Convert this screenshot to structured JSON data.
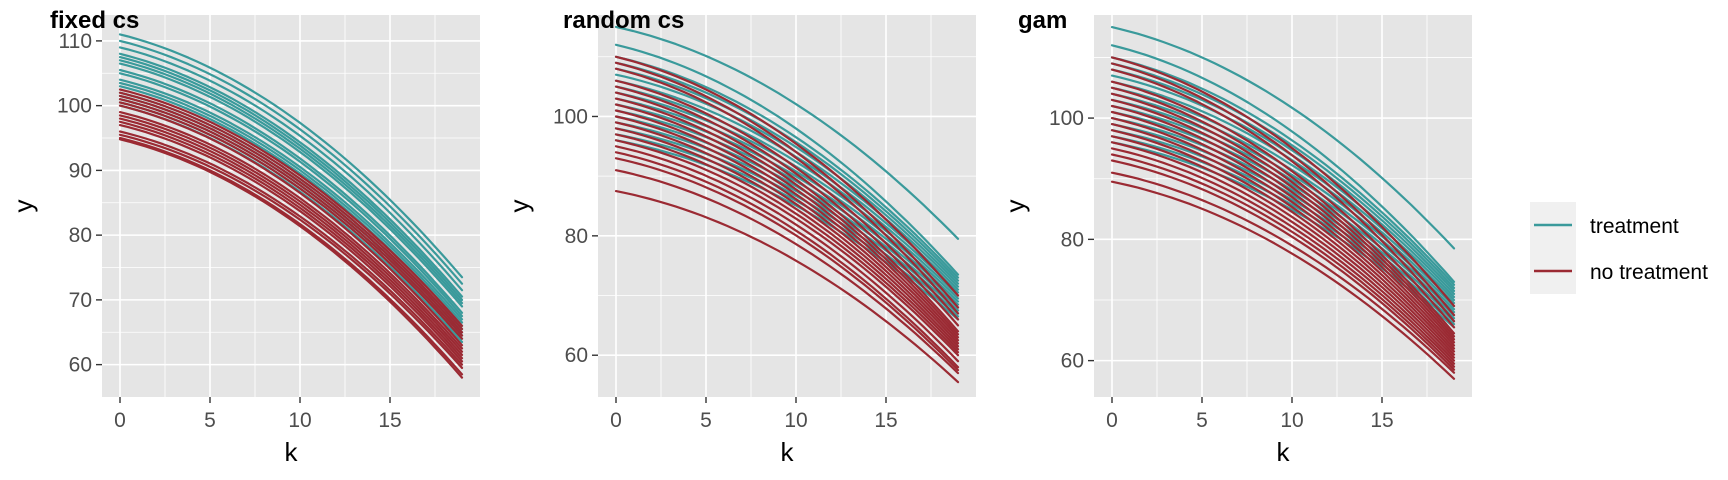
{
  "chart_data": [
    {
      "type": "line",
      "title": "fixed cs",
      "xlabel": "k",
      "ylabel": "y",
      "xlim": [
        -1,
        20
      ],
      "ylim": [
        55,
        114
      ],
      "xticks": [
        0,
        5,
        10,
        15
      ],
      "yticks": [
        60,
        70,
        80,
        90,
        100,
        110
      ],
      "xticklabels": [
        "0",
        "5",
        "10",
        "15"
      ],
      "yticklabels": [
        "60",
        "70",
        "80",
        "90",
        "100",
        "110"
      ],
      "grid": true,
      "x": [
        0,
        19
      ],
      "series": [
        {
          "group": "treatment",
          "start_values": [
            111,
            110,
            109,
            108,
            107.5,
            107,
            106.5,
            105.5,
            105,
            104,
            103.5,
            103,
            102,
            101.5,
            101,
            100.5,
            100
          ],
          "end_values": [
            73.5,
            72.5,
            71.5,
            70.5,
            70,
            69.5,
            69,
            68,
            67.5,
            67,
            66.5,
            66,
            65.5,
            65,
            64.5,
            64,
            63.5
          ]
        },
        {
          "group": "no treatment",
          "start_values": [
            102.5,
            102,
            101.5,
            101,
            100.5,
            100,
            99,
            98.5,
            98,
            97.5,
            97,
            96,
            95.5,
            95,
            94.8
          ],
          "end_values": [
            66,
            65.5,
            65,
            64.5,
            64,
            63,
            62.5,
            62,
            61.5,
            61,
            60.5,
            60,
            59.5,
            58.5,
            58
          ]
        }
      ]
    },
    {
      "type": "line",
      "title": "random cs",
      "xlabel": "k",
      "ylabel": "y",
      "xlim": [
        -1,
        20
      ],
      "ylim": [
        53,
        117
      ],
      "xticks": [
        0,
        5,
        10,
        15
      ],
      "yticks": [
        60,
        80,
        100
      ],
      "xticklabels": [
        "0",
        "5",
        "10",
        "15"
      ],
      "yticklabels": [
        "60",
        "80",
        "100"
      ],
      "grid": true,
      "x": [
        0,
        19
      ],
      "series": [
        {
          "group": "treatment",
          "start_values": [
            115,
            112,
            110,
            109,
            108,
            107,
            106,
            105,
            104,
            103,
            102,
            101,
            100,
            99,
            98,
            97,
            96
          ],
          "end_values": [
            79.5,
            73.5,
            73,
            72.5,
            72,
            71.5,
            71,
            70.5,
            70,
            69.5,
            69,
            68.5,
            68,
            67.5,
            67,
            66.5,
            66
          ]
        },
        {
          "group": "no treatment",
          "start_values": [
            110,
            109,
            108,
            106,
            105,
            104,
            103,
            102,
            101,
            100,
            99,
            98,
            97,
            96,
            95,
            94,
            93,
            91,
            87.5
          ],
          "end_values": [
            70,
            68,
            67,
            66,
            65,
            64,
            63.5,
            63,
            62.5,
            62,
            61.5,
            61,
            60.5,
            60,
            59,
            58,
            57.5,
            57,
            55.5
          ]
        }
      ]
    },
    {
      "type": "line",
      "title": "gam",
      "xlabel": "k",
      "ylabel": "y",
      "xlim": [
        -1,
        20
      ],
      "ylim": [
        54,
        117
      ],
      "xticks": [
        0,
        5,
        10,
        15
      ],
      "yticks": [
        60,
        80,
        100
      ],
      "xticklabels": [
        "0",
        "5",
        "10",
        "15"
      ],
      "yticklabels": [
        "60",
        "80",
        "100"
      ],
      "grid": true,
      "x": [
        0,
        19
      ],
      "series": [
        {
          "group": "treatment",
          "start_values": [
            115,
            112,
            110,
            109,
            108,
            107,
            106,
            105,
            104,
            103,
            102,
            101,
            100,
            99,
            98,
            97,
            96
          ],
          "end_values": [
            78.5,
            73,
            72.5,
            72,
            71.5,
            71,
            70.5,
            70,
            69.5,
            69,
            68.5,
            68,
            67.5,
            67,
            66.5,
            66,
            65.5
          ]
        },
        {
          "group": "no treatment",
          "start_values": [
            110,
            109,
            108,
            106,
            105,
            104,
            103,
            102,
            101,
            100,
            99,
            98,
            97,
            96,
            95,
            94,
            93,
            91,
            89.5
          ],
          "end_values": [
            69,
            67.5,
            66.5,
            65.5,
            64.5,
            64,
            63.5,
            63,
            62.5,
            62,
            61.5,
            61,
            60.5,
            60,
            59.5,
            59,
            58.5,
            58,
            57
          ]
        }
      ]
    }
  ],
  "legend": {
    "placement": "right",
    "items": [
      {
        "label": "treatment",
        "color": "#3a9a9b"
      },
      {
        "label": "no treatment",
        "color": "#9b2a33"
      }
    ]
  },
  "colors": {
    "panel_background": "#e5e5e5",
    "grid": "#ffffff",
    "treatment": "#3a9a9b",
    "no_treatment": "#9b2a33",
    "legend_background": "#f0f0f0"
  }
}
